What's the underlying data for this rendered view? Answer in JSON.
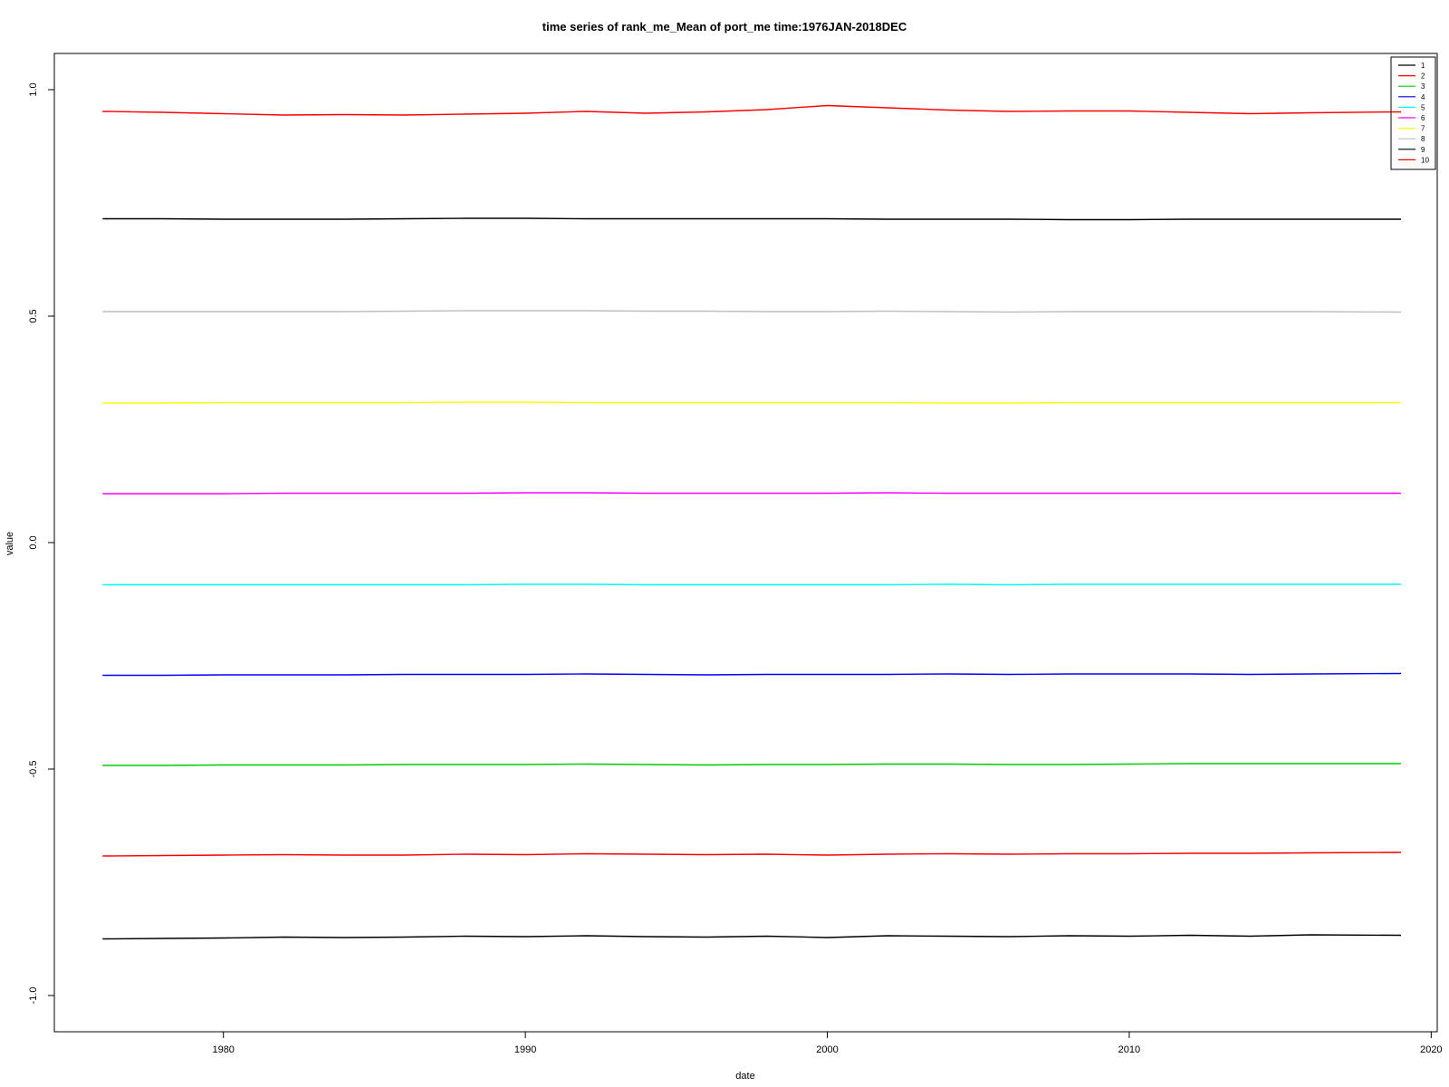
{
  "chart_data": {
    "type": "line",
    "title": "time series of rank_me_Mean of port_me time:1976JAN-2018DEC",
    "xlabel": "date",
    "ylabel": "value",
    "xlim": [
      1974.4,
      2020.2
    ],
    "ylim": [
      -1.08,
      1.08
    ],
    "x_ticks": [
      1980,
      1990,
      2000,
      2010,
      2020
    ],
    "x_tick_labels": [
      "1980",
      "1990",
      "2000",
      "2010",
      "2020"
    ],
    "y_ticks": [
      -1.0,
      -0.5,
      0.0,
      0.5,
      1.0
    ],
    "y_tick_labels": [
      "-1.0",
      "-0.5",
      "0.0",
      "0.5",
      "1.0"
    ],
    "grid": false,
    "legend_position": "top-right",
    "x": [
      1976.0,
      1978.0,
      1980.0,
      1982.0,
      1984.0,
      1986.0,
      1988.0,
      1990.0,
      1992.0,
      1994.0,
      1996.0,
      1998.0,
      2000.0,
      2002.0,
      2004.0,
      2006.0,
      2008.0,
      2010.0,
      2012.0,
      2014.0,
      2016.0,
      2019.0
    ],
    "series": [
      {
        "name": "1",
        "color": "#000000",
        "values": [
          -0.875,
          -0.874,
          -0.873,
          -0.871,
          -0.872,
          -0.871,
          -0.869,
          -0.87,
          -0.868,
          -0.87,
          -0.871,
          -0.869,
          -0.872,
          -0.868,
          -0.869,
          -0.87,
          -0.868,
          -0.869,
          -0.867,
          -0.869,
          -0.866,
          -0.867
        ]
      },
      {
        "name": "2",
        "color": "#ff0000",
        "values": [
          -0.692,
          -0.691,
          -0.69,
          -0.689,
          -0.69,
          -0.69,
          -0.688,
          -0.689,
          -0.687,
          -0.688,
          -0.689,
          -0.688,
          -0.69,
          -0.688,
          -0.687,
          -0.688,
          -0.687,
          -0.687,
          -0.686,
          -0.686,
          -0.685,
          -0.684
        ]
      },
      {
        "name": "3",
        "color": "#00cd00",
        "values": [
          -0.492,
          -0.492,
          -0.491,
          -0.491,
          -0.491,
          -0.49,
          -0.49,
          -0.49,
          -0.489,
          -0.49,
          -0.491,
          -0.49,
          -0.49,
          -0.489,
          -0.489,
          -0.49,
          -0.49,
          -0.489,
          -0.488,
          -0.488,
          -0.488,
          -0.488
        ]
      },
      {
        "name": "4",
        "color": "#0000ff",
        "values": [
          -0.293,
          -0.293,
          -0.292,
          -0.292,
          -0.292,
          -0.291,
          -0.291,
          -0.291,
          -0.29,
          -0.291,
          -0.292,
          -0.291,
          -0.291,
          -0.291,
          -0.29,
          -0.291,
          -0.29,
          -0.29,
          -0.29,
          -0.291,
          -0.29,
          -0.289
        ]
      },
      {
        "name": "5",
        "color": "#00ffff",
        "values": [
          -0.093,
          -0.093,
          -0.093,
          -0.093,
          -0.093,
          -0.093,
          -0.093,
          -0.092,
          -0.092,
          -0.093,
          -0.093,
          -0.093,
          -0.093,
          -0.093,
          -0.092,
          -0.093,
          -0.092,
          -0.092,
          -0.092,
          -0.092,
          -0.092,
          -0.092
        ]
      },
      {
        "name": "6",
        "color": "#ff00ff",
        "values": [
          0.108,
          0.108,
          0.108,
          0.109,
          0.109,
          0.109,
          0.109,
          0.11,
          0.11,
          0.109,
          0.109,
          0.109,
          0.109,
          0.11,
          0.109,
          0.109,
          0.109,
          0.109,
          0.109,
          0.109,
          0.109,
          0.109
        ]
      },
      {
        "name": "7",
        "color": "#ffff00",
        "values": [
          0.308,
          0.308,
          0.309,
          0.309,
          0.309,
          0.309,
          0.31,
          0.31,
          0.309,
          0.309,
          0.309,
          0.309,
          0.309,
          0.309,
          0.308,
          0.308,
          0.309,
          0.309,
          0.309,
          0.309,
          0.309,
          0.309
        ]
      },
      {
        "name": "8",
        "color": "#bebebe",
        "values": [
          0.51,
          0.51,
          0.51,
          0.51,
          0.51,
          0.511,
          0.512,
          0.512,
          0.512,
          0.511,
          0.511,
          0.51,
          0.51,
          0.511,
          0.51,
          0.509,
          0.51,
          0.51,
          0.51,
          0.51,
          0.51,
          0.509
        ]
      },
      {
        "name": "9",
        "color": "#000000",
        "values": [
          0.715,
          0.715,
          0.714,
          0.714,
          0.714,
          0.715,
          0.716,
          0.716,
          0.715,
          0.715,
          0.715,
          0.715,
          0.715,
          0.714,
          0.714,
          0.714,
          0.713,
          0.713,
          0.714,
          0.714,
          0.714,
          0.714
        ]
      },
      {
        "name": "10",
        "color": "#ff0000",
        "values": [
          0.952,
          0.95,
          0.947,
          0.944,
          0.945,
          0.944,
          0.946,
          0.948,
          0.952,
          0.948,
          0.951,
          0.956,
          0.965,
          0.96,
          0.955,
          0.952,
          0.953,
          0.953,
          0.95,
          0.947,
          0.949,
          0.951
        ]
      }
    ]
  }
}
